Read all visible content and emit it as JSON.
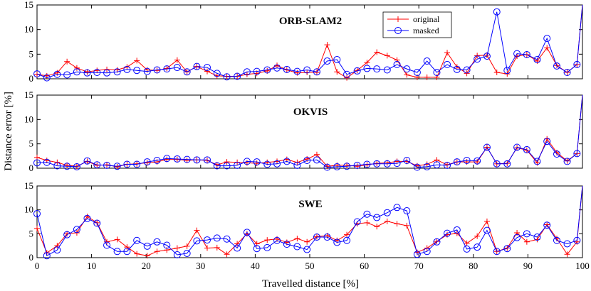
{
  "chart_data": {
    "type": "line",
    "xlabel": "Travelled distance [%]",
    "ylabel": "Distance error [%]",
    "xlim": [
      0,
      100
    ],
    "xticks": [
      0,
      10,
      20,
      30,
      40,
      50,
      60,
      70,
      80,
      90,
      100
    ],
    "ylim": [
      0,
      15
    ],
    "yticks": [
      0,
      5,
      10,
      15
    ],
    "legend": {
      "placement": "top-right of first panel",
      "entries": [
        "original",
        "masked"
      ]
    },
    "colors": {
      "original": "#ff0000",
      "masked": "#0000ff"
    },
    "x": [
      0,
      1.8,
      3.7,
      5.5,
      7.3,
      9.2,
      11,
      12.8,
      14.7,
      16.5,
      18.3,
      20.2,
      22,
      23.8,
      25.7,
      27.5,
      29.3,
      31.2,
      33,
      34.8,
      36.7,
      38.5,
      40.3,
      42.2,
      44,
      45.8,
      47.7,
      49.5,
      51.3,
      53.2,
      55,
      56.8,
      58.7,
      60.5,
      62.3,
      64.2,
      66,
      67.8,
      69.7,
      71.5,
      73.3,
      75.2,
      77,
      78.8,
      80.7,
      82.5,
      84.3,
      86.2,
      88,
      89.8,
      91.7,
      93.5,
      95.3,
      97.2,
      99,
      100
    ],
    "panels": [
      {
        "title": "ORB-SLAM2",
        "series": [
          {
            "name": "original",
            "values": [
              0.9,
              0.6,
              1.2,
              3.5,
              2.2,
              1.4,
              1.7,
              1.9,
              1.8,
              2.4,
              3.7,
              1.8,
              1.7,
              2.1,
              3.8,
              1.4,
              2.5,
              1.5,
              0.6,
              0.5,
              0.5,
              0.9,
              1.1,
              1.6,
              2.7,
              1.8,
              1.2,
              1.3,
              1.3,
              6.9,
              1.4,
              0.2,
              1.7,
              3.3,
              5.4,
              4.7,
              3.8,
              0.8,
              0.3,
              0.3,
              0.3,
              5.3,
              2.4,
              1.1,
              4.7,
              4.8,
              1.3,
              1.0,
              4.6,
              4.9,
              3.6,
              6.3,
              2.7,
              1.3,
              2.9,
              15.0
            ]
          },
          {
            "name": "masked",
            "values": [
              1.0,
              0.2,
              0.9,
              0.8,
              1.4,
              1.2,
              1.3,
              1.2,
              1.4,
              1.9,
              1.7,
              1.5,
              1.8,
              2.0,
              2.3,
              1.4,
              2.5,
              2.3,
              1.1,
              0.4,
              0.5,
              1.4,
              1.5,
              1.8,
              2.2,
              1.9,
              1.5,
              1.8,
              1.4,
              3.6,
              3.9,
              0.9,
              1.6,
              2.1,
              2.0,
              1.8,
              2.9,
              2.0,
              1.3,
              3.6,
              1.3,
              2.9,
              1.9,
              1.8,
              4.0,
              4.6,
              13.6,
              1.7,
              5.1,
              4.9,
              3.9,
              8.2,
              2.6,
              1.3,
              2.9,
              15.0
            ]
          }
        ]
      },
      {
        "title": "OKVIS",
        "series": [
          {
            "name": "original",
            "values": [
              2.2,
              1.6,
              1.2,
              0.6,
              0.4,
              1.4,
              0.6,
              0.7,
              0.3,
              0.8,
              0.9,
              1.1,
              1.3,
              1.8,
              1.8,
              1.6,
              1.7,
              1.6,
              0.7,
              1.3,
              1.2,
              1.1,
              1.0,
              1.2,
              1.4,
              1.8,
              1.2,
              1.9,
              2.8,
              0.4,
              0.6,
              0.6,
              0.4,
              0.7,
              1.0,
              1.1,
              1.4,
              1.4,
              0.5,
              0.8,
              1.7,
              0.7,
              1.3,
              1.3,
              1.3,
              4.3,
              0.9,
              1.0,
              4.2,
              3.7,
              1.1,
              6.0,
              3.2,
              1.5,
              3.0,
              15.0
            ]
          },
          {
            "name": "masked",
            "values": [
              1.1,
              1.2,
              0.5,
              0.4,
              0.3,
              1.5,
              0.7,
              0.6,
              0.4,
              0.8,
              0.8,
              1.3,
              1.6,
              2.0,
              1.9,
              1.8,
              1.7,
              1.7,
              0.5,
              0.5,
              0.6,
              1.4,
              1.3,
              0.8,
              0.9,
              1.4,
              0.6,
              1.6,
              1.7,
              0.2,
              0.3,
              0.4,
              0.6,
              0.8,
              0.9,
              0.9,
              1.0,
              1.6,
              0.2,
              0.3,
              0.7,
              0.6,
              1.3,
              1.6,
              1.5,
              4.3,
              0.9,
              0.9,
              4.3,
              3.8,
              1.4,
              5.5,
              2.9,
              1.4,
              3.0,
              15.0
            ]
          }
        ]
      },
      {
        "title": "SWE",
        "series": [
          {
            "name": "original",
            "values": [
              6.1,
              1.0,
              2.5,
              5.0,
              5.2,
              8.6,
              7.3,
              3.3,
              3.8,
              2.2,
              0.8,
              0.4,
              1.3,
              1.6,
              2.0,
              2.4,
              5.7,
              2.0,
              2.1,
              0.7,
              2.9,
              5.0,
              2.9,
              3.7,
              3.9,
              3.2,
              4.0,
              3.3,
              4.4,
              4.6,
              3.6,
              4.8,
              7.1,
              7.3,
              6.5,
              7.6,
              7.1,
              6.7,
              1.1,
              2.0,
              3.4,
              4.8,
              5.1,
              3.0,
              4.5,
              7.6,
              1.3,
              2.0,
              5.2,
              3.3,
              3.8,
              6.9,
              4.0,
              0.7,
              3.3,
              15.0
            ]
          },
          {
            "name": "masked",
            "values": [
              9.2,
              0.4,
              1.6,
              4.8,
              5.9,
              8.2,
              7.2,
              2.6,
              1.3,
              1.3,
              3.6,
              2.4,
              3.3,
              2.6,
              0.6,
              0.9,
              3.5,
              3.7,
              4.1,
              3.9,
              2.0,
              5.3,
              1.9,
              2.1,
              3.6,
              2.8,
              2.3,
              1.7,
              4.3,
              4.3,
              3.2,
              3.6,
              7.5,
              9.1,
              8.4,
              9.4,
              10.5,
              9.8,
              0.7,
              1.3,
              3.3,
              5.1,
              5.8,
              1.8,
              2.2,
              5.7,
              1.3,
              1.9,
              4.2,
              5.0,
              4.3,
              6.8,
              3.6,
              2.9,
              3.6,
              15.0
            ]
          }
        ]
      }
    ]
  }
}
